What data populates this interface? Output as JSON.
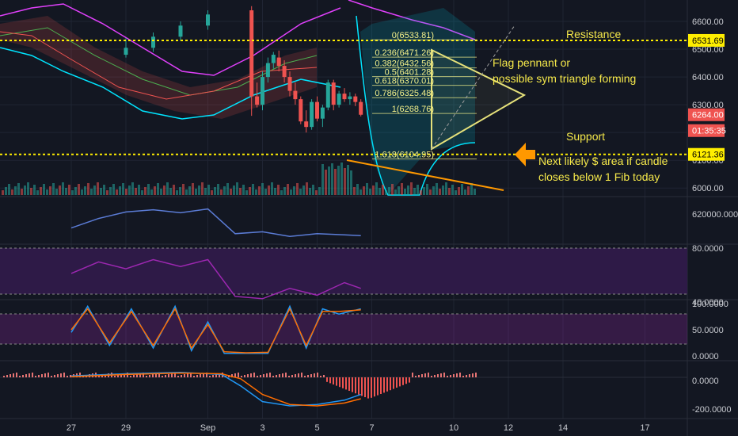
{
  "chart_data": {
    "type": "candlestick",
    "colors": {
      "background": "#131722",
      "up": "#26a69a",
      "down": "#ef5350",
      "fib": "#f5f18a",
      "annotation": "#f5e84a",
      "support_resistance": "#ffee00",
      "arrow": "#ff9800",
      "rsi_band": "#2e1a47"
    },
    "x_labels": [
      "27",
      "29",
      "Sep",
      "3",
      "5",
      "7",
      "10",
      "12",
      "14",
      "17"
    ],
    "price_axis": {
      "ticks": [
        "6600.00",
        "6500.00",
        "6400.00",
        "6300.00",
        "6200.00",
        "6100.00",
        "6000.00"
      ],
      "range": [
        5975,
        6660
      ],
      "labels": [
        {
          "text": "6531.69",
          "kind": "resistance"
        },
        {
          "text": "6264.00",
          "kind": "last"
        },
        {
          "text": "01:35:35",
          "kind": "timer"
        },
        {
          "text": "6121.36",
          "kind": "support"
        }
      ]
    },
    "fib_levels": [
      {
        "label": "0(6533.81)",
        "value": 6533.81
      },
      {
        "label": "0.236(6471.26)",
        "value": 6471.26
      },
      {
        "label": "0.382(6432.56)",
        "value": 6432.56
      },
      {
        "label": "0.5(6401.28)",
        "value": 6401.28
      },
      {
        "label": "0.618(6370.01)",
        "value": 6370.01
      },
      {
        "label": "0.786(6325.48)",
        "value": 6325.48
      },
      {
        "label": "1(6268.76)",
        "value": 6268.76
      },
      {
        "label": "1.618(6104.95)",
        "value": 6104.95
      }
    ],
    "levels": {
      "resistance": 6531.69,
      "support": 6121.36
    },
    "annotations": {
      "resistance": "Resistance",
      "support": "Support",
      "flag_line1": "Flag pennant or",
      "flag_line2": "possible sym triangle forming",
      "next_line1": "Next likely $ area if candle",
      "next_line2": "closes below 1 Fib today"
    },
    "candles": [
      [
        2,
        6480,
        6540,
        6470,
        6505
      ],
      [
        3,
        6505,
        6560,
        6490,
        6545
      ],
      [
        4,
        6545,
        6600,
        6530,
        6585
      ],
      [
        5,
        6585,
        6640,
        6570,
        6625
      ],
      [
        6.6,
        6640,
        6655,
        6260,
        6330
      ],
      [
        6.8,
        6330,
        6380,
        6290,
        6300
      ],
      [
        7.0,
        6300,
        6420,
        6280,
        6400
      ],
      [
        7.2,
        6400,
        6470,
        6380,
        6450
      ],
      [
        7.4,
        6450,
        6490,
        6430,
        6480
      ],
      [
        7.6,
        6470,
        6495,
        6420,
        6440
      ],
      [
        7.8,
        6440,
        6460,
        6380,
        6400
      ],
      [
        8.0,
        6400,
        6420,
        6330,
        6350
      ],
      [
        8.2,
        6350,
        6380,
        6300,
        6320
      ],
      [
        8.4,
        6320,
        6330,
        6230,
        6240
      ],
      [
        8.6,
        6240,
        6280,
        6200,
        6220
      ],
      [
        8.8,
        6220,
        6320,
        6210,
        6310
      ],
      [
        9.0,
        6310,
        6330,
        6240,
        6250
      ],
      [
        9.2,
        6250,
        6300,
        6220,
        6290
      ],
      [
        9.4,
        6290,
        6390,
        6280,
        6380
      ],
      [
        9.6,
        6380,
        6390,
        6280,
        6300
      ],
      [
        9.8,
        6300,
        6350,
        6290,
        6340
      ],
      [
        10.0,
        6340,
        6360,
        6310,
        6320
      ],
      [
        10.2,
        6320,
        6345,
        6300,
        6330
      ],
      [
        10.4,
        6330,
        6340,
        6295,
        6310
      ],
      [
        10.6,
        6310,
        6320,
        6258,
        6264
      ]
    ],
    "volume_ma_note": "",
    "obv": {
      "label": "620000.0000",
      "x": [
        0,
        1,
        2,
        3,
        4,
        5,
        6,
        7,
        8,
        9,
        10,
        10.6
      ],
      "y": [
        0.3,
        0.55,
        0.72,
        0.78,
        0.7,
        0.8,
        0.15,
        0.2,
        0.08,
        0.15,
        0.12,
        0.1
      ]
    },
    "rsi": {
      "ticks": [
        "80.0000",
        "40.0000"
      ],
      "x": [
        0,
        1,
        2,
        3,
        4,
        5,
        6,
        7,
        8,
        9,
        10,
        10.6
      ],
      "y": [
        58,
        68,
        62,
        70,
        64,
        70,
        38,
        36,
        45,
        39,
        50,
        45
      ]
    },
    "stoch_rsi": {
      "ticks": [
        "100.0000",
        "50.0000",
        "0.0000"
      ],
      "k": {
        "x": [
          0,
          0.6,
          1.4,
          2.2,
          3.0,
          3.8,
          4.4,
          5.0,
          5.6,
          6.4,
          7.2,
          8.0,
          8.6,
          9.2,
          9.8,
          10.6
        ],
        "y": [
          45,
          95,
          20,
          90,
          15,
          95,
          10,
          65,
          5,
          5,
          5,
          95,
          15,
          90,
          80,
          90
        ]
      },
      "d": {
        "x": [
          0,
          0.6,
          1.4,
          2.2,
          3.0,
          3.8,
          4.4,
          5.0,
          5.6,
          6.4,
          7.2,
          8.0,
          8.6,
          9.2,
          9.8,
          10.6
        ],
        "y": [
          50,
          90,
          25,
          85,
          20,
          90,
          15,
          60,
          8,
          6,
          7,
          90,
          20,
          85,
          85,
          88
        ]
      }
    },
    "macd": {
      "ticks": [
        "0.0000",
        "-200.0000"
      ],
      "macd": {
        "x": [
          0,
          2,
          4,
          5.5,
          6.2,
          7,
          8,
          9,
          10,
          10.6
        ],
        "y": [
          10,
          25,
          35,
          20,
          -60,
          -170,
          -200,
          -190,
          -160,
          -120
        ]
      },
      "signal": {
        "x": [
          0,
          2,
          4,
          5.5,
          6.2,
          7,
          8,
          9,
          10,
          10.6
        ],
        "y": [
          5,
          20,
          30,
          25,
          -10,
          -120,
          -190,
          -200,
          -180,
          -150
        ]
      }
    }
  }
}
